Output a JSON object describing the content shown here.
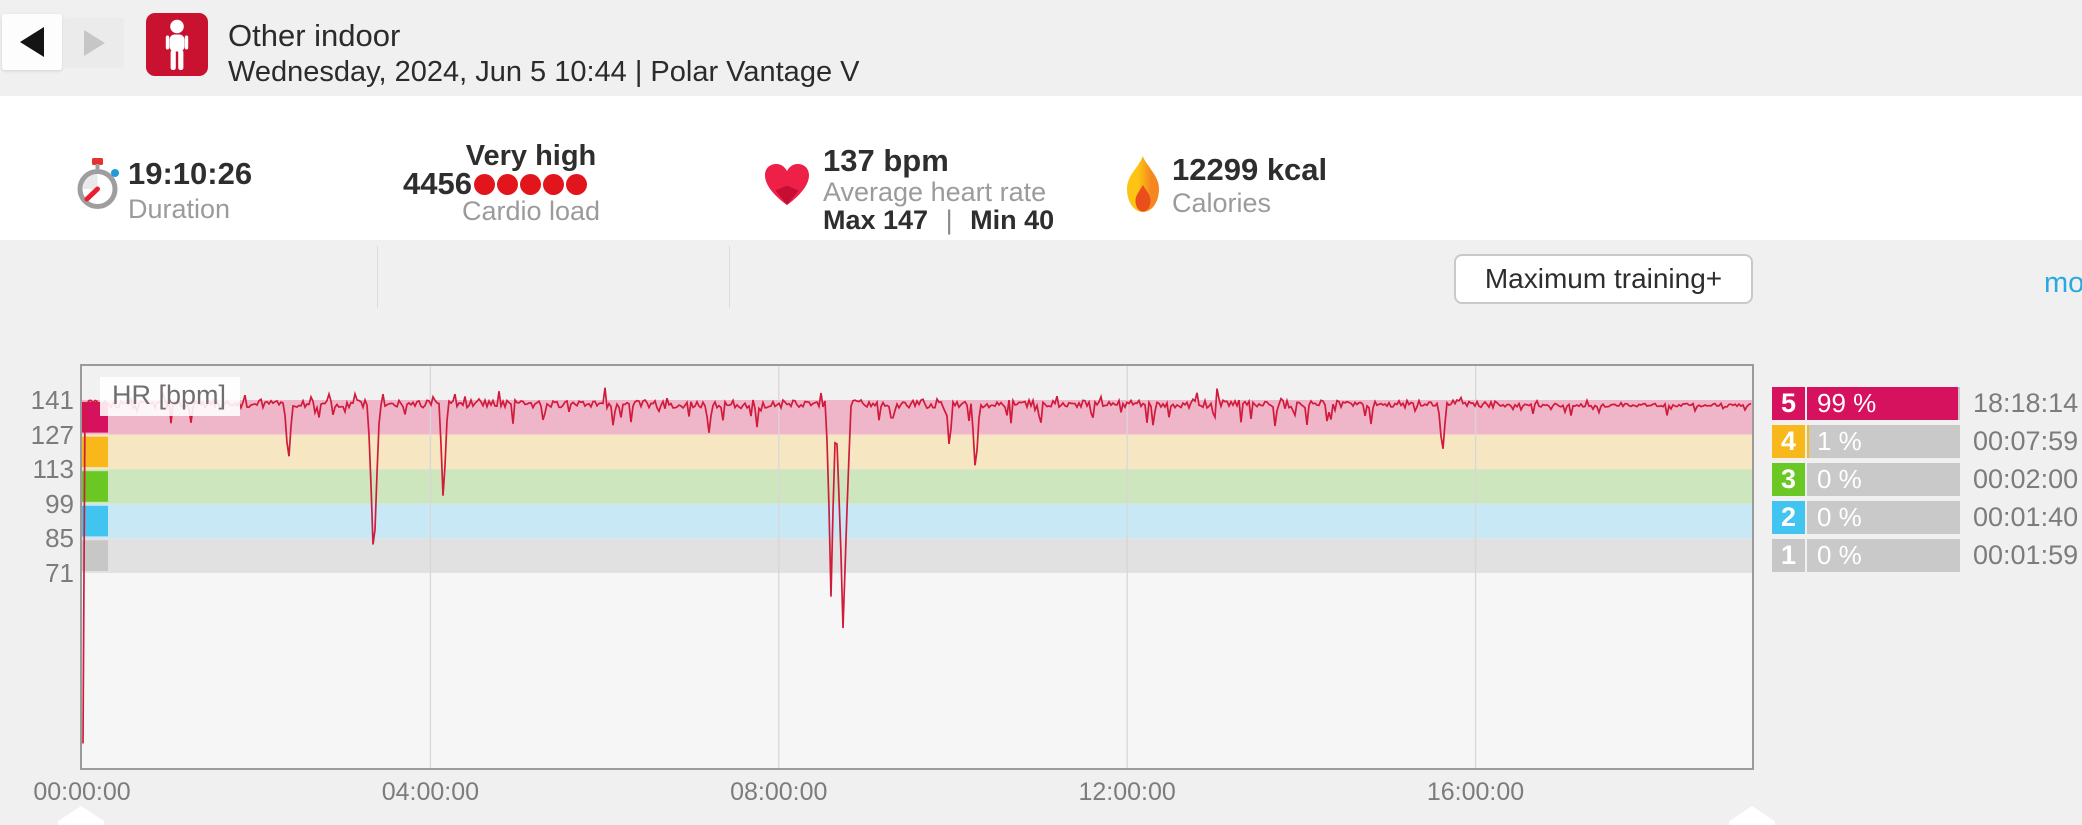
{
  "header": {
    "title": "Other indoor",
    "subtitle": "Wednesday, 2024, Jun 5 10:44 | Polar Vantage V"
  },
  "stats": {
    "duration": {
      "value": "19:10:26",
      "label": "Duration"
    },
    "cardio_load": {
      "rating": "Very high",
      "value": "4456",
      "dots": 5,
      "label": "Cardio load",
      "dot_color": "#e2151c"
    },
    "heart_rate": {
      "value": "137 bpm",
      "label": "Average heart rate",
      "max": "Max 147",
      "sep": "|",
      "min": "Min 40"
    },
    "calories": {
      "value": "12299 kcal",
      "label": "Calories"
    },
    "training_benefit": {
      "label": "Maximum training+"
    },
    "more_link": {
      "label": "mo",
      "color": "#29a9e1"
    }
  },
  "chart_data": {
    "type": "line",
    "title": "HR [bpm]",
    "series_name": "HR",
    "line_color": "#d01b3c",
    "duration_hours": 19.174,
    "x_ticks": [
      {
        "hours": 0,
        "label": "00:00:00"
      },
      {
        "hours": 4,
        "label": "04:00:00"
      },
      {
        "hours": 8,
        "label": "08:00:00"
      },
      {
        "hours": 12,
        "label": "12:00:00"
      },
      {
        "hours": 16,
        "label": "16:00:00"
      }
    ],
    "y_ticks_bpm": [
      141,
      127,
      113,
      99,
      85,
      71
    ],
    "summary": {
      "avg_bpm": 137,
      "max_bpm": 147,
      "min_bpm": 40
    },
    "zones": [
      {
        "zone": 5,
        "bpm_from": 127,
        "bpm_to": 141,
        "color": "#d6115e",
        "band_color": "#efb6c9"
      },
      {
        "zone": 4,
        "bpm_from": 113,
        "bpm_to": 127,
        "color": "#f8b81c",
        "band_color": "#f6e7c2"
      },
      {
        "zone": 3,
        "bpm_from": 99,
        "bpm_to": 113,
        "color": "#6bc724",
        "band_color": "#cde6bd"
      },
      {
        "zone": 2,
        "bpm_from": 85,
        "bpm_to": 99,
        "color": "#42c4f0",
        "band_color": "#c9e8f6"
      },
      {
        "zone": 1,
        "bpm_from": 71,
        "bpm_to": 85,
        "color": "#c7c7c7",
        "band_color": "#e1e1e1"
      }
    ],
    "above_band_color": "#f1f1f1",
    "below_band_color": "#f6f6f6",
    "grid_color": "#d7d7d7",
    "series": {
      "baseline_bpm": 139.4,
      "start_point_bpm": 2,
      "smooth_tail": {
        "from_hours": 16.3,
        "baseline_bpm": 138.9,
        "noise_scale": 0.45
      },
      "dips": [
        {
          "hours": 1.25,
          "bpm": 131,
          "width": 0.03
        },
        {
          "hours": 2.37,
          "bpm": 113,
          "width": 0.05
        },
        {
          "hours": 3.35,
          "bpm": 69,
          "width": 0.07
        },
        {
          "hours": 4.15,
          "bpm": 95,
          "width": 0.05
        },
        {
          "hours": 5.3,
          "bpm": 130,
          "width": 0.03
        },
        {
          "hours": 6.1,
          "bpm": 129,
          "width": 0.03
        },
        {
          "hours": 7.2,
          "bpm": 127,
          "width": 0.04
        },
        {
          "hours": 7.75,
          "bpm": 130,
          "width": 0.03
        },
        {
          "hours": 8.6,
          "bpm": 60,
          "width": 0.06
        },
        {
          "hours": 8.74,
          "bpm": 43,
          "width": 0.09
        },
        {
          "hours": 9.3,
          "bpm": 129,
          "width": 0.03
        },
        {
          "hours": 9.96,
          "bpm": 119,
          "width": 0.04
        },
        {
          "hours": 10.26,
          "bpm": 108,
          "width": 0.05
        },
        {
          "hours": 11.0,
          "bpm": 130,
          "width": 0.03
        },
        {
          "hours": 11.6,
          "bpm": 131,
          "width": 0.03
        },
        {
          "hours": 12.3,
          "bpm": 129,
          "width": 0.03
        },
        {
          "hours": 13.0,
          "bpm": 131,
          "width": 0.03
        },
        {
          "hours": 13.7,
          "bpm": 129,
          "width": 0.03
        },
        {
          "hours": 14.3,
          "bpm": 130,
          "width": 0.03
        },
        {
          "hours": 14.8,
          "bpm": 131,
          "width": 0.03
        },
        {
          "hours": 15.62,
          "bpm": 117,
          "width": 0.05
        },
        {
          "hours": 17.1,
          "bpm": 133,
          "width": 0.02
        },
        {
          "hours": 18.2,
          "bpm": 134,
          "width": 0.02
        }
      ]
    }
  },
  "zone_table": {
    "rows": [
      {
        "zone": "5",
        "percent": "99 %",
        "percent_value": 99,
        "time": "18:18:14",
        "color": "#d6115e"
      },
      {
        "zone": "4",
        "percent": "1 %",
        "percent_value": 1,
        "time": "00:07:59",
        "color": "#f8b81c"
      },
      {
        "zone": "3",
        "percent": "0 %",
        "percent_value": 0,
        "time": "00:02:00",
        "color": "#6bc724"
      },
      {
        "zone": "2",
        "percent": "0 %",
        "percent_value": 0,
        "time": "00:01:40",
        "color": "#42c4f0"
      },
      {
        "zone": "1",
        "percent": "0 %",
        "percent_value": 0,
        "time": "00:01:59",
        "color": "#c7c7c7"
      }
    ]
  }
}
